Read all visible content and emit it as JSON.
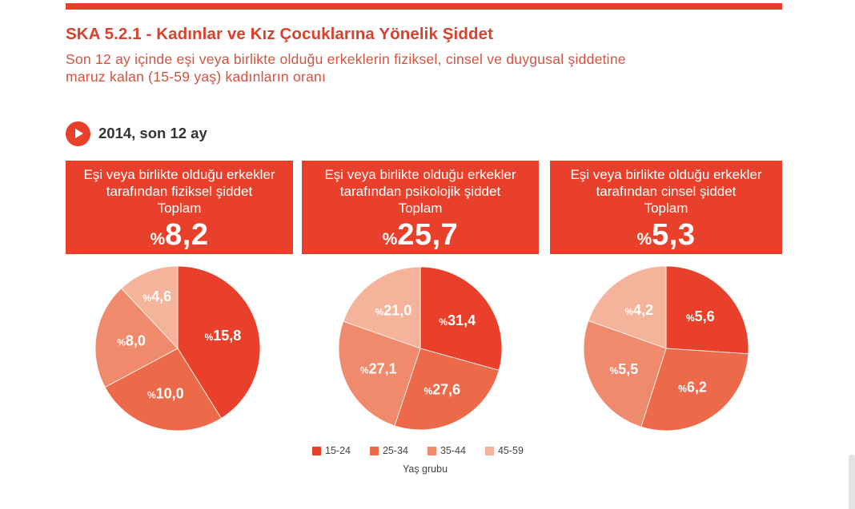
{
  "colors": {
    "accent": "#e8402b",
    "title": "#d9412c",
    "subtitle": "#d4523f",
    "section_text": "#333333"
  },
  "header": {
    "title": "SKA 5.2.1 - Kadınlar ve Kız Çocuklarına Yönelik Şiddet",
    "subtitle_line1": "Son 12 ay içinde eşi veya birlikte olduğu erkeklerin fiziksel, cinsel ve duygusal şiddetine",
    "subtitle_line2": "maruz kalan (15-59 yaş) kadınların oranı"
  },
  "section": {
    "icon": "play-circle-icon",
    "label": "2014, son 12 ay"
  },
  "panels": [
    {
      "line1": "Eşi veya birlikte olduğu erkekler",
      "line2": "tarafından fiziksel şiddet",
      "total_label": "Toplam",
      "percent_sign": "%",
      "total_value": "8,2"
    },
    {
      "line1": "Eşi veya birlikte olduğu erkekler",
      "line2": "tarafından psikolojik şiddet",
      "total_label": "Toplam",
      "percent_sign": "%",
      "total_value": "25,7"
    },
    {
      "line1": "Eşi veya birlikte olduğu erkekler",
      "line2": "tarafından cinsel şiddet",
      "total_label": "Toplam",
      "percent_sign": "%",
      "total_value": "5,3"
    }
  ],
  "legend": {
    "title": "Yaş grubu",
    "items": [
      {
        "label": "15-24",
        "color": "#e8402b"
      },
      {
        "label": "25-34",
        "color": "#ec6a4a"
      },
      {
        "label": "35-44",
        "color": "#f08a6c"
      },
      {
        "label": "45-59",
        "color": "#f6b39b"
      }
    ]
  },
  "chart_data": [
    {
      "type": "pie",
      "title": "Eşi veya birlikte olduğu erkekler tarafından fiziksel şiddet",
      "total": 8.2,
      "categories": [
        "15-24",
        "25-34",
        "35-44",
        "45-59"
      ],
      "values": [
        15.8,
        10.0,
        8.0,
        4.6
      ],
      "labels": [
        "15,8",
        "10,0",
        "8,0",
        "4,6"
      ],
      "legend_title": "Yaş grubu",
      "start_angle": "12 o'clock, clockwise"
    },
    {
      "type": "pie",
      "title": "Eşi veya birlikte olduğu erkekler tarafından psikolojik şiddet",
      "total": 25.7,
      "categories": [
        "15-24",
        "25-34",
        "35-44",
        "45-59"
      ],
      "values": [
        31.4,
        27.6,
        27.1,
        21.0
      ],
      "labels": [
        "31,4",
        "27,6",
        "27,1",
        "21,0"
      ],
      "legend_title": "Yaş grubu",
      "start_angle": "12 o'clock, clockwise"
    },
    {
      "type": "pie",
      "title": "Eşi veya birlikte olduğu erkekler tarafından cinsel şiddet",
      "total": 5.3,
      "categories": [
        "15-24",
        "25-34",
        "35-44",
        "45-59"
      ],
      "values": [
        5.6,
        6.2,
        5.5,
        4.2
      ],
      "labels": [
        "5,6",
        "6,2",
        "5,5",
        "4,2"
      ],
      "legend_title": "Yaş grubu",
      "start_angle": "12 o'clock, clockwise"
    }
  ],
  "pie_label_prefix": "%"
}
